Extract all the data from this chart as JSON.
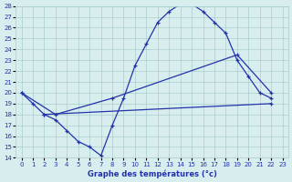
{
  "xlabel": "Graphe des températures (°c)",
  "xlim": [
    -0.5,
    23.5
  ],
  "ylim": [
    14,
    28
  ],
  "xticks": [
    0,
    1,
    2,
    3,
    4,
    5,
    6,
    7,
    8,
    9,
    10,
    11,
    12,
    13,
    14,
    15,
    16,
    17,
    18,
    19,
    20,
    21,
    22,
    23
  ],
  "yticks": [
    14,
    15,
    16,
    17,
    18,
    19,
    20,
    21,
    22,
    23,
    24,
    25,
    26,
    27,
    28
  ],
  "bg_color": "#d8eeee",
  "grid_color": "#aacccc",
  "line_color": "#2233aa",
  "line1_x": [
    0,
    1,
    2,
    3,
    4,
    5,
    6,
    7,
    8,
    9,
    10,
    11,
    12,
    13,
    14,
    15,
    16,
    17,
    18,
    19,
    20,
    21,
    22
  ],
  "line1_y": [
    20.0,
    19.0,
    18.0,
    17.5,
    16.5,
    15.5,
    15.0,
    14.2,
    17.0,
    19.5,
    22.5,
    24.5,
    26.5,
    27.5,
    28.2,
    28.2,
    27.5,
    26.5,
    25.5,
    23.0,
    21.5,
    20.0,
    19.5
  ],
  "line2_x": [
    0,
    3,
    8,
    19,
    22
  ],
  "line2_y": [
    20.0,
    18.0,
    19.5,
    23.5,
    20.0
  ],
  "line3_x": [
    2,
    22
  ],
  "line3_y": [
    18.0,
    19.0
  ],
  "tick_fontsize": 5,
  "xlabel_fontsize": 6
}
